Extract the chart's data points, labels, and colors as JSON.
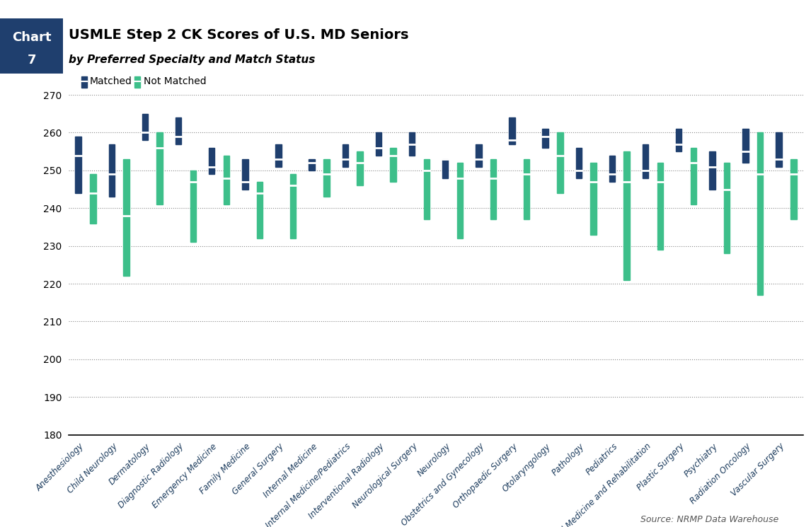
{
  "title": "USMLE Step 2 CK Scores of U.S. MD Seniors",
  "subtitle": "by Preferred Specialty and Match Status",
  "source": "Source: NRMP Data Warehouse",
  "specialties": [
    "Anesthesiology",
    "Child Neurology",
    "Dermatology",
    "Diagnostic Radiology",
    "Emergency Medicine",
    "Family Medicine",
    "General Surgery",
    "Internal Medicine",
    "Internal Medicine/Pediatrics",
    "Interventional Radiology",
    "Neurological Surgery",
    "Neurology",
    "Obstetrics and Gynecology",
    "Orthopaedic Surgery",
    "Otolaryngology",
    "Pathology",
    "Pediatrics",
    "Physical Medicine and Rehabilitation",
    "Plastic Surgery",
    "Psychiatry",
    "Radiation Oncology",
    "Vascular Surgery"
  ],
  "matched": {
    "q1": [
      253,
      248,
      259,
      258,
      250,
      246,
      252,
      251,
      252,
      255,
      255,
      252,
      252,
      257,
      257,
      249,
      248,
      249,
      256,
      246,
      253,
      252
    ],
    "med": [
      254,
      249,
      260,
      259,
      251,
      247,
      253,
      252,
      253,
      256,
      257,
      253,
      253,
      258,
      259,
      250,
      249,
      250,
      257,
      251,
      255,
      253
    ],
    "q3": [
      259,
      257,
      265,
      264,
      256,
      253,
      257,
      253,
      257,
      260,
      260,
      253,
      257,
      264,
      261,
      256,
      254,
      257,
      261,
      255,
      261,
      260
    ]
  },
  "not_matched": {
    "q1": [
      242,
      235,
      254,
      244,
      245,
      243,
      244,
      247,
      250,
      252,
      247,
      246,
      246,
      246,
      251,
      244,
      244,
      244,
      249,
      242,
      245,
      247
    ],
    "med": [
      244,
      238,
      256,
      247,
      248,
      244,
      246,
      249,
      252,
      254,
      250,
      248,
      248,
      249,
      254,
      247,
      247,
      247,
      252,
      245,
      249,
      249
    ],
    "q3": [
      249,
      253,
      260,
      250,
      254,
      247,
      249,
      253,
      255,
      256,
      253,
      252,
      253,
      253,
      260,
      252,
      255,
      252,
      256,
      252,
      260,
      253
    ]
  },
  "matched_bottom": [
    244,
    243,
    258,
    257,
    249,
    245,
    251,
    250,
    251,
    254,
    254,
    248,
    251,
    257,
    256,
    248,
    247,
    248,
    255,
    245,
    252,
    251
  ],
  "not_matched_bottom": [
    236,
    222,
    241,
    231,
    241,
    232,
    232,
    243,
    246,
    247,
    237,
    232,
    237,
    237,
    244,
    233,
    221,
    229,
    241,
    228,
    217,
    237
  ],
  "matched_top": [
    259,
    257,
    265,
    264,
    256,
    253,
    257,
    253,
    257,
    260,
    260,
    253,
    257,
    264,
    261,
    256,
    254,
    257,
    261,
    255,
    261,
    260
  ],
  "not_matched_top": [
    249,
    253,
    260,
    250,
    254,
    247,
    249,
    253,
    255,
    256,
    253,
    252,
    253,
    253,
    260,
    252,
    255,
    252,
    256,
    252,
    260,
    253
  ],
  "matched_color": "#1f3f6e",
  "not_matched_color": "#3dbf8a",
  "ylim": [
    180,
    270
  ],
  "yticks": [
    180,
    190,
    200,
    210,
    220,
    230,
    240,
    250,
    260,
    270
  ],
  "header_bg": "#1f3f6e",
  "header_text": "#ffffff"
}
